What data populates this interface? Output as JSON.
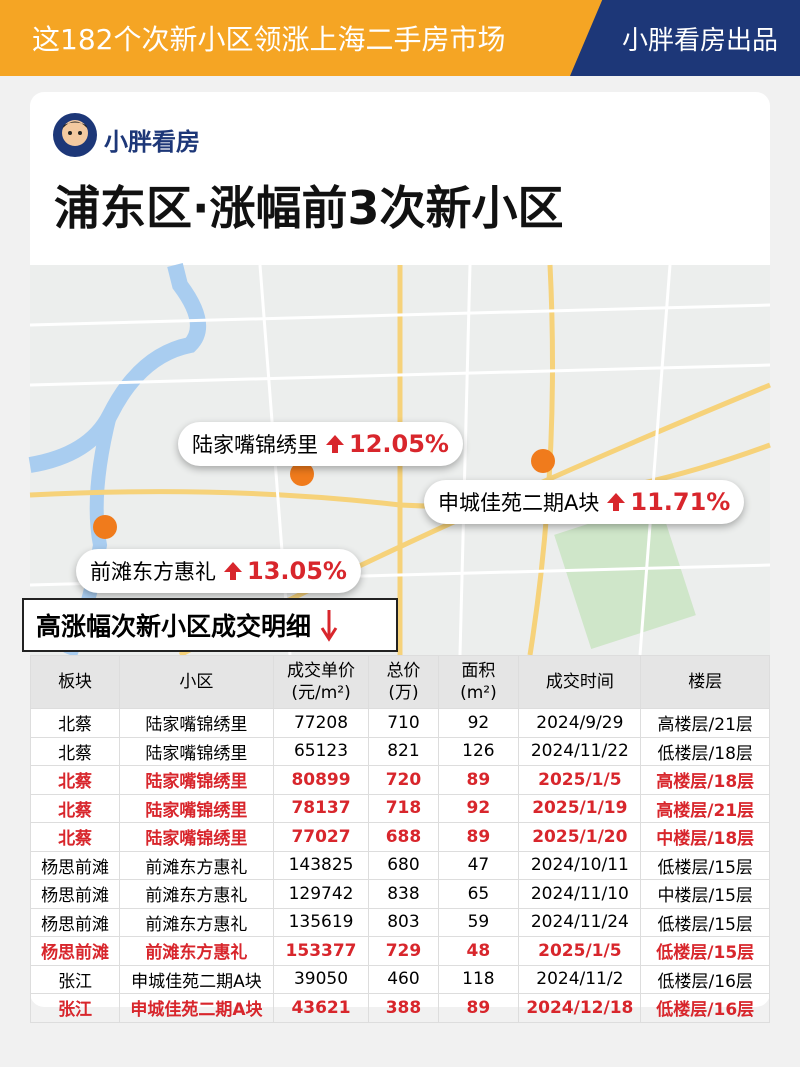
{
  "header": {
    "title": "这182个次新小区领涨上海二手房市场",
    "brand": "小胖看房出品"
  },
  "logo": {
    "text": "小胖看房"
  },
  "title": "浦东区·涨幅前3次新小区",
  "callouts": [
    {
      "name": "陆家嘴锦绣里",
      "change": "12.05%"
    },
    {
      "name": "申城佳苑二期A块",
      "change": "11.71%"
    },
    {
      "name": "前滩东方惠礼",
      "change": "13.05%"
    }
  ],
  "table": {
    "heading": "高涨幅次新小区成交明细",
    "columns": [
      {
        "label": "板块"
      },
      {
        "label": "小区"
      },
      {
        "label": "成交单价",
        "unit": "(元/m²)"
      },
      {
        "label": "总价",
        "unit": "(万)"
      },
      {
        "label": "面积",
        "unit": "(m²)"
      },
      {
        "label": "成交时间"
      },
      {
        "label": "楼层"
      }
    ],
    "rows": [
      {
        "cells": [
          "北蔡",
          "陆家嘴锦绣里",
          "77208",
          "710",
          "92",
          "2024/9/29",
          "高楼层/21层"
        ],
        "highlight": false
      },
      {
        "cells": [
          "北蔡",
          "陆家嘴锦绣里",
          "65123",
          "821",
          "126",
          "2024/11/22",
          "低楼层/18层"
        ],
        "highlight": false
      },
      {
        "cells": [
          "北蔡",
          "陆家嘴锦绣里",
          "80899",
          "720",
          "89",
          "2025/1/5",
          "高楼层/18层"
        ],
        "highlight": true
      },
      {
        "cells": [
          "北蔡",
          "陆家嘴锦绣里",
          "78137",
          "718",
          "92",
          "2025/1/19",
          "高楼层/21层"
        ],
        "highlight": true
      },
      {
        "cells": [
          "北蔡",
          "陆家嘴锦绣里",
          "77027",
          "688",
          "89",
          "2025/1/20",
          "中楼层/18层"
        ],
        "highlight": true
      },
      {
        "cells": [
          "杨思前滩",
          "前滩东方惠礼",
          "143825",
          "680",
          "47",
          "2024/10/11",
          "低楼层/15层"
        ],
        "highlight": false
      },
      {
        "cells": [
          "杨思前滩",
          "前滩东方惠礼",
          "129742",
          "838",
          "65",
          "2024/11/10",
          "中楼层/15层"
        ],
        "highlight": false
      },
      {
        "cells": [
          "杨思前滩",
          "前滩东方惠礼",
          "135619",
          "803",
          "59",
          "2024/11/24",
          "低楼层/15层"
        ],
        "highlight": false
      },
      {
        "cells": [
          "杨思前滩",
          "前滩东方惠礼",
          "153377",
          "729",
          "48",
          "2025/1/5",
          "低楼层/15层"
        ],
        "highlight": true
      },
      {
        "cells": [
          "张江",
          "申城佳苑二期A块",
          "39050",
          "460",
          "118",
          "2024/11/2",
          "低楼层/16层"
        ],
        "highlight": false
      },
      {
        "cells": [
          "张江",
          "申城佳苑二期A块",
          "43621",
          "388",
          "89",
          "2024/12/18",
          "低楼层/16层"
        ],
        "highlight": true
      }
    ]
  }
}
